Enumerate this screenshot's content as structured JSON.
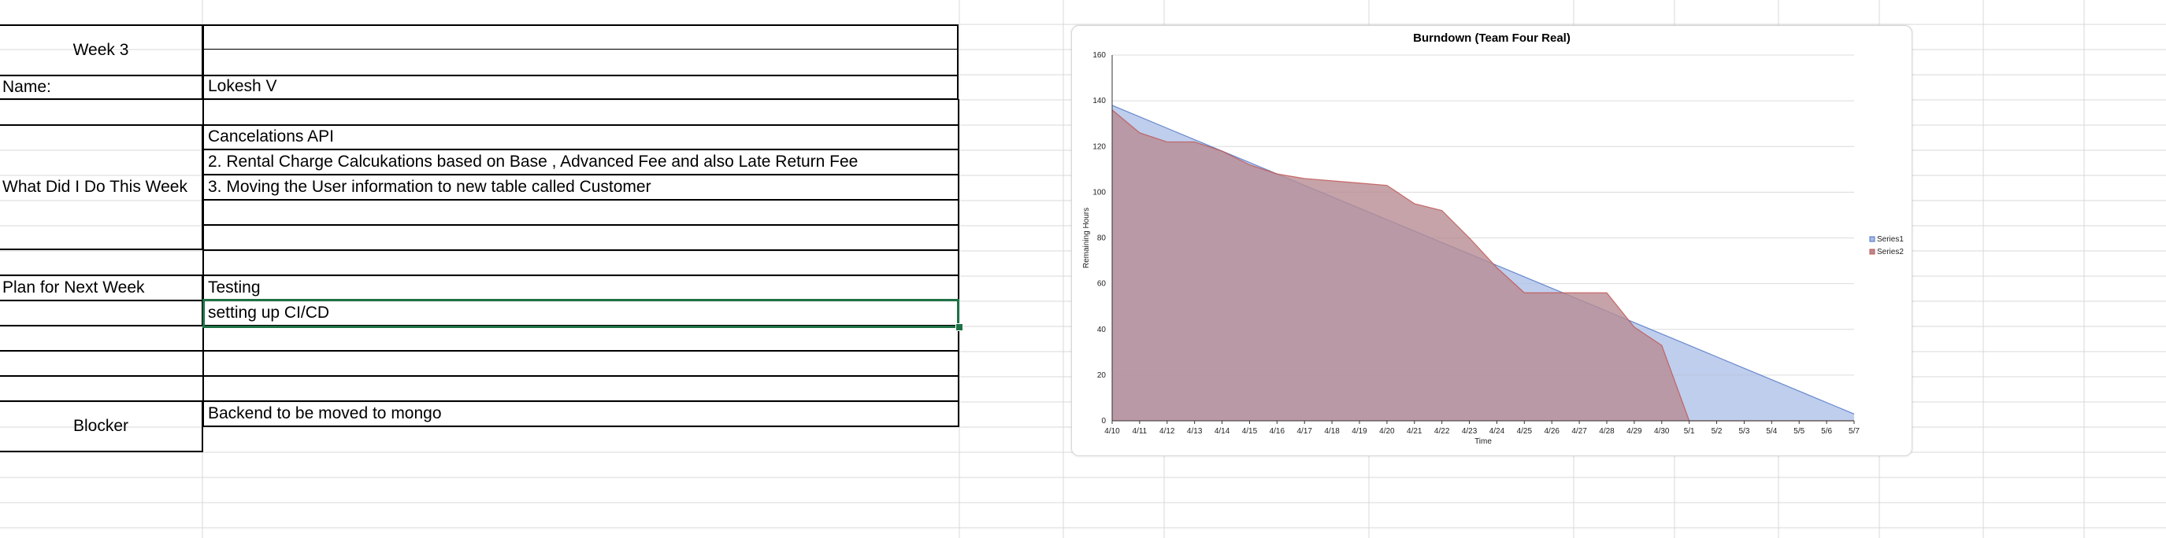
{
  "sheet": {
    "week_label": "Week 3",
    "name_label": "Name:",
    "name_value": "Lokesh V",
    "did_label": "What Did I Do This Week",
    "did_items": [
      "Cancelations API",
      "2. Rental Charge Calcukations based on Base , Advanced Fee and also Late Return Fee",
      "3. Moving the User information to new table called Customer"
    ],
    "plan_label": "Plan for Next Week",
    "plan_items": [
      "Testing",
      "setting up CI/CD"
    ],
    "blocker_label": "Blocker",
    "blocker_value": "Backend to be moved to mongo"
  },
  "colors": {
    "grid_line": "#d9d9d9",
    "border": "#000000",
    "selection": "#1e7145",
    "series1_fill": "#a9bde6",
    "series1_line": "#4a72c4",
    "series2_fill": "#b88c93",
    "series2_line": "#c0504d"
  },
  "chart_data": {
    "type": "area",
    "title": "Burndown (Team Four Real)",
    "xlabel": "Time",
    "ylabel": "Remaining Hours",
    "ylim": [
      0,
      160
    ],
    "yticks": [
      0,
      20,
      40,
      60,
      80,
      100,
      120,
      140,
      160
    ],
    "grid": true,
    "legend_position": "right",
    "categories": [
      "4/10",
      "4/11",
      "4/12",
      "4/13",
      "4/14",
      "4/15",
      "4/16",
      "4/17",
      "4/18",
      "4/19",
      "4/20",
      "4/21",
      "4/22",
      "4/23",
      "4/24",
      "4/25",
      "4/26",
      "4/27",
      "4/28",
      "4/29",
      "4/30",
      "5/1",
      "5/2",
      "5/3",
      "5/4",
      "5/5",
      "5/6",
      "5/7"
    ],
    "series": [
      {
        "name": "Series1",
        "values": [
          138,
          133,
          128,
          123,
          118,
          113,
          108,
          103,
          98,
          93,
          88,
          83,
          78,
          73,
          68,
          63,
          58,
          53,
          48,
          43,
          38,
          33,
          28,
          23,
          18,
          13,
          8,
          3
        ]
      },
      {
        "name": "Series2",
        "values": [
          136,
          126,
          122,
          122,
          118,
          112,
          108,
          106,
          105,
          104,
          103,
          95,
          92,
          80,
          67,
          56,
          56,
          56,
          56,
          41,
          33,
          0,
          0,
          0,
          0,
          0,
          0,
          0
        ]
      }
    ]
  }
}
